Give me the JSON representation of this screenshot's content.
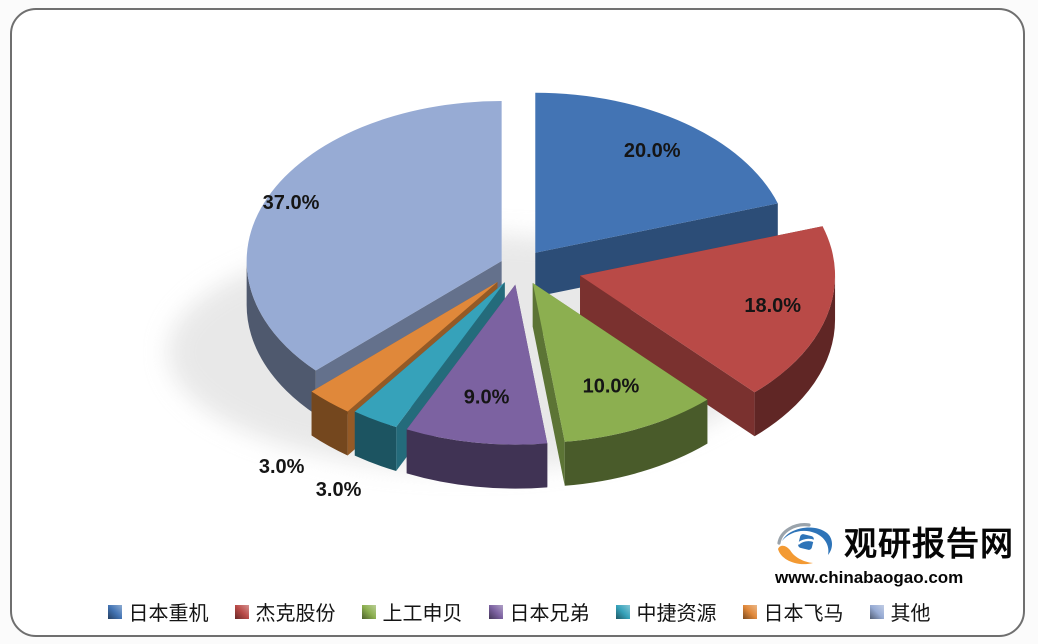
{
  "branding": {
    "site_name": "观研报告网",
    "site_url": "www.chinabaogao.com"
  },
  "chart_data": {
    "type": "pie",
    "style": "3d-exploded",
    "title": "",
    "legend_position": "bottom",
    "start_angle_deg": 0,
    "direction": "clockwise",
    "total": 100,
    "value_unit": "%",
    "slices": [
      {
        "label": "日本重机",
        "value": 20.0,
        "display": "20.0%",
        "color": "#4374b4"
      },
      {
        "label": "杰克股份",
        "value": 18.0,
        "display": "18.0%",
        "color": "#b94a47"
      },
      {
        "label": "上工申贝",
        "value": 10.0,
        "display": "10.0%",
        "color": "#8caf50"
      },
      {
        "label": "日本兄弟",
        "value": 9.0,
        "display": "9.0%",
        "color": "#7c62a1"
      },
      {
        "label": "中捷资源",
        "value": 3.0,
        "display": "3.0%",
        "color": "#36a2ba"
      },
      {
        "label": "日本飞马",
        "value": 3.0,
        "display": "3.0%",
        "color": "#e0883a"
      },
      {
        "label": "其他",
        "value": 37.0,
        "display": "37.0%",
        "color": "#97abd4"
      }
    ]
  }
}
